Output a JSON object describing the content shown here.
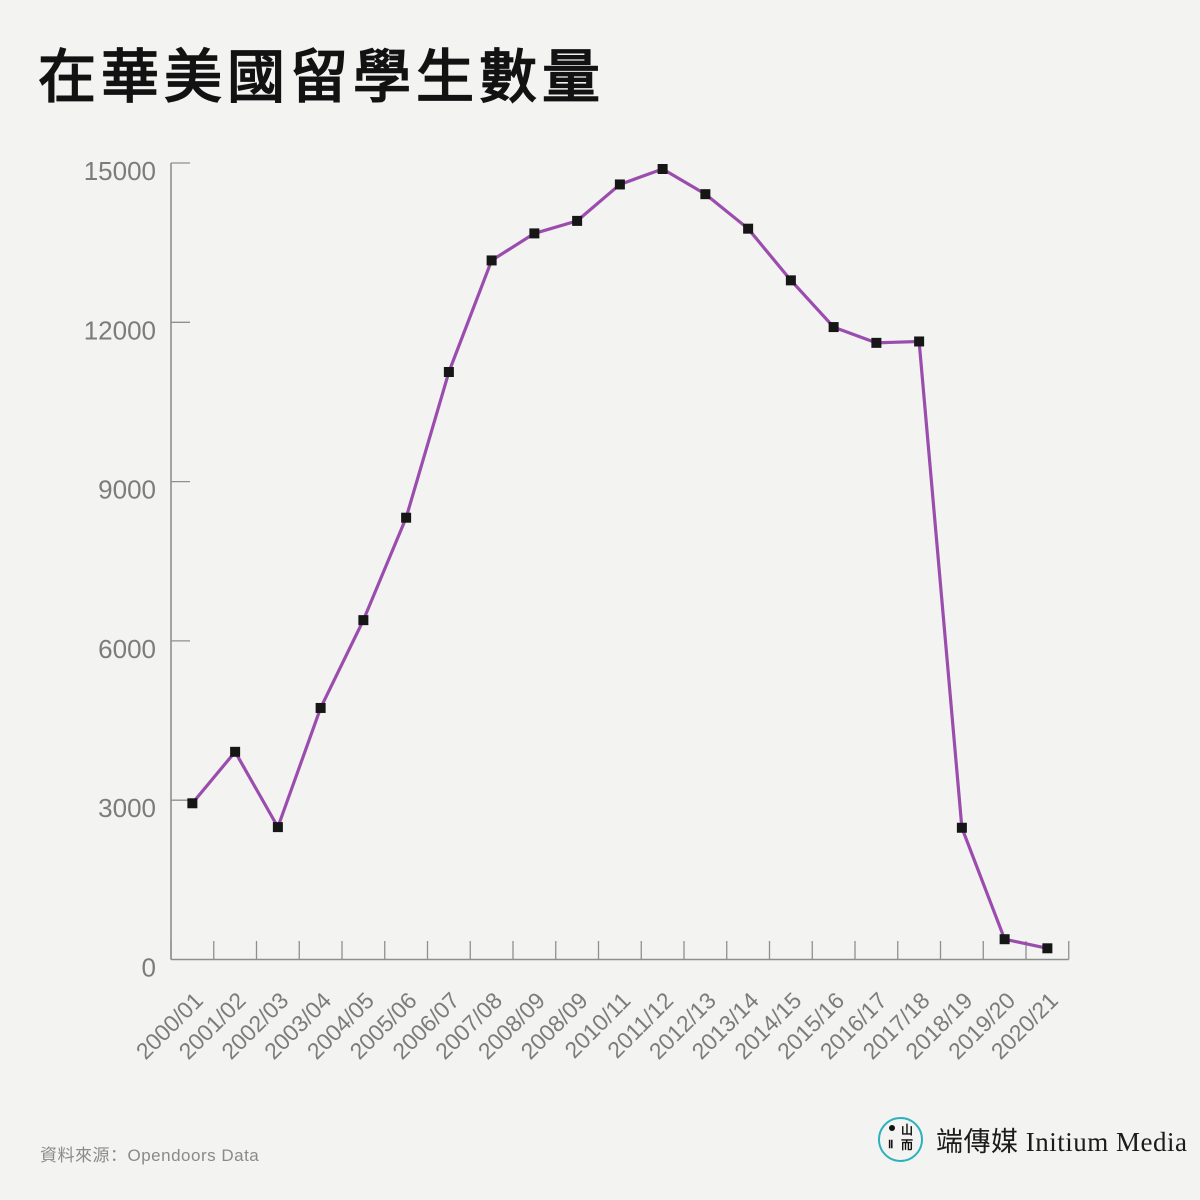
{
  "title": "在華美國留學生數量",
  "source_note": "資料來源：Opendoors Data",
  "branding": {
    "brand_text": "端傳媒 Initium Media",
    "logo_color": "#2eb1bb",
    "logo_glyphs": {
      "top_right": "山",
      "bottom_left": "Ⅱ",
      "bottom_right": "而"
    }
  },
  "chart_data": {
    "type": "line",
    "title": "在華美國留學生數量",
    "categories": [
      "2000/01",
      "2001/02",
      "2002/03",
      "2003/04",
      "2004/05",
      "2005/06",
      "2006/07",
      "2007/08",
      "2008/09",
      "2008/09",
      "2010/11",
      "2011/12",
      "2012/13",
      "2013/14",
      "2014/15",
      "2015/16",
      "2016/17",
      "2017/18",
      "2018/19",
      "2019/20",
      "2020/21"
    ],
    "values": [
      2942,
      3911,
      2493,
      4737,
      6391,
      8320,
      11064,
      13165,
      13674,
      13910,
      14596,
      14887,
      14413,
      13763,
      12790,
      11910,
      11613,
      11639,
      2481,
      382,
      211
    ],
    "xlabel": "",
    "ylabel": "",
    "ylim": [
      0,
      15000
    ],
    "yticks": [
      0,
      3000,
      6000,
      9000,
      12000,
      15000
    ],
    "grid": false,
    "legend": "none",
    "line_color": "#9b4dad",
    "marker": "square",
    "marker_color": "#161616",
    "axis_color": "#8f8f8f",
    "tick_label_color": "#7c7c7c"
  }
}
